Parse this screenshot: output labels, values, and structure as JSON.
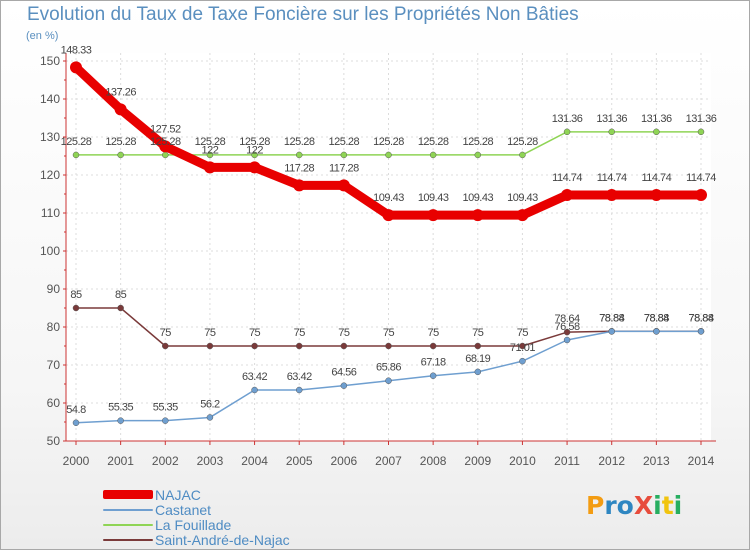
{
  "chart_data": {
    "type": "line",
    "title": "Evolution du Taux de Taxe Foncière sur les Propriétés Non Bâties",
    "ylabel": "(en %)",
    "xlabel": "",
    "ylim": [
      50,
      150
    ],
    "yticks": [
      50,
      60,
      70,
      80,
      90,
      100,
      110,
      120,
      130,
      140,
      150
    ],
    "grid": true,
    "x": [
      2000,
      2001,
      2002,
      2003,
      2004,
      2005,
      2006,
      2007,
      2008,
      2009,
      2010,
      2011,
      2012,
      2013,
      2014
    ],
    "series": [
      {
        "name": "NAJAC",
        "color": "#e80000",
        "values": [
          148.33,
          137.26,
          127.52,
          122,
          122,
          117.28,
          117.28,
          109.43,
          109.43,
          109.43,
          109.43,
          114.74,
          114.74,
          114.74,
          114.74
        ],
        "labels": [
          "148.33",
          "137.26",
          "127.52",
          "122",
          "122",
          "117.28",
          "117.28",
          "109.43",
          "109.43",
          "109.43",
          "109.43",
          "114.74",
          "114.74",
          "114.74",
          "114.74"
        ]
      },
      {
        "name": "Castanet",
        "color": "#6f9fd0",
        "values": [
          54.8,
          55.35,
          55.35,
          56.2,
          63.42,
          63.42,
          64.56,
          65.86,
          67.18,
          68.19,
          71.01,
          76.58,
          78.84,
          78.84,
          78.84
        ],
        "labels": [
          "54.8",
          "55.35",
          "55.35",
          "56.2",
          "63.42",
          "63.42",
          "64.56",
          "65.86",
          "67.18",
          "68.19",
          "71.01",
          "76.58",
          "78.84",
          "78.84",
          "78.84"
        ]
      },
      {
        "name": "La Fouillade",
        "color": "#8fd455",
        "values": [
          125.28,
          125.28,
          125.28,
          125.28,
          125.28,
          125.28,
          125.28,
          125.28,
          125.28,
          125.28,
          125.28,
          131.36,
          131.36,
          131.36,
          131.36
        ],
        "labels": [
          "125.28",
          "125.28",
          "125.28",
          "125.28",
          "125.28",
          "125.28",
          "125.28",
          "125.28",
          "125.28",
          "125.28",
          "125.28",
          "131.36",
          "131.36",
          "131.36",
          "131.36"
        ]
      },
      {
        "name": "Saint-André-de-Najac",
        "color": "#7a3a3a",
        "values": [
          85,
          85,
          75,
          75,
          75,
          75,
          75,
          75,
          75,
          75,
          75,
          78.64,
          78.88,
          78.88,
          78.88
        ],
        "labels": [
          "85",
          "85",
          "75",
          "75",
          "75",
          "75",
          "75",
          "75",
          "75",
          "75",
          "75",
          "78.64",
          "78.88",
          "78.88",
          "78.88"
        ]
      }
    ],
    "legend_position": "bottom-left"
  },
  "logo": {
    "text": "ProXiti",
    "letters": [
      "P",
      "r",
      "o",
      "X",
      "i",
      "t",
      "i"
    ],
    "colors": [
      "#f39c12",
      "#2e86c1",
      "#2e86c1",
      "#e74c3c",
      "#27ae60",
      "#f1c40f",
      "#27ae60"
    ]
  }
}
